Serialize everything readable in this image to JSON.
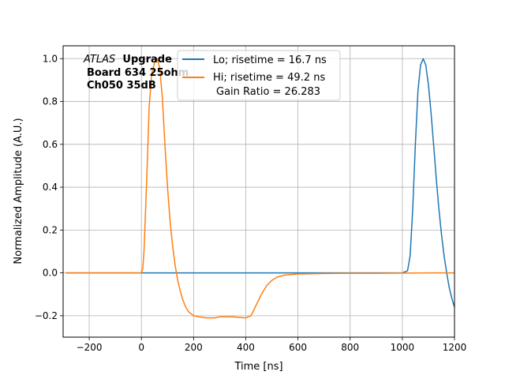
{
  "chart_data": {
    "type": "line",
    "xlabel": "Time [ns]",
    "ylabel": "Normalized Amplitude (A.U.)",
    "xlim": [
      -300,
      1200
    ],
    "ylim": [
      -0.3,
      1.06
    ],
    "xticks": [
      -200,
      0,
      200,
      400,
      600,
      800,
      1000,
      1200
    ],
    "yticks": [
      -0.2,
      0.0,
      0.2,
      0.4,
      0.6,
      0.8,
      1.0
    ],
    "xtick_labels": [
      "−200",
      "0",
      "200",
      "400",
      "600",
      "800",
      "1000",
      "1200"
    ],
    "ytick_labels": [
      "−0.2",
      "0.0",
      "0.2",
      "0.4",
      "0.6",
      "0.8",
      "1.0"
    ],
    "grid": true,
    "legend_position": "top-center",
    "annotation": {
      "atlas": "ATLAS",
      "upgrade": "Upgrade",
      "line2": "Board 634 25ohm",
      "line3": "Ch050 35dB"
    },
    "series": [
      {
        "name": "Lo; risetime = 16.7 ns",
        "color": "#1f77b4",
        "x": [
          -290,
          -200,
          -100,
          0,
          100,
          200,
          300,
          400,
          500,
          600,
          700,
          800,
          900,
          1000,
          1020,
          1030,
          1040,
          1050,
          1060,
          1070,
          1080,
          1090,
          1100,
          1110,
          1120,
          1130,
          1140,
          1150,
          1160,
          1170,
          1180,
          1190,
          1200
        ],
        "y": [
          0.0,
          0.0,
          0.0,
          0.0,
          0.0,
          0.0,
          0.0,
          0.0,
          0.0,
          0.0,
          0.0,
          0.0,
          0.0,
          0.0,
          0.01,
          0.08,
          0.3,
          0.6,
          0.85,
          0.97,
          1.0,
          0.97,
          0.88,
          0.75,
          0.6,
          0.44,
          0.3,
          0.18,
          0.08,
          0.0,
          -0.07,
          -0.12,
          -0.16
        ]
      },
      {
        "name": "Hi; risetime = 49.2 ns",
        "color": "#ff7f0e",
        "x": [
          -290,
          -100,
          0,
          5,
          10,
          20,
          30,
          40,
          50,
          60,
          70,
          80,
          90,
          100,
          110,
          120,
          130,
          140,
          150,
          160,
          170,
          180,
          200,
          220,
          250,
          280,
          300,
          350,
          400,
          420,
          440,
          460,
          480,
          500,
          520,
          550,
          600,
          700,
          800,
          900,
          1000,
          1100,
          1200
        ],
        "y": [
          0.0,
          0.0,
          0.0,
          0.02,
          0.1,
          0.42,
          0.78,
          0.93,
          0.98,
          1.0,
          0.96,
          0.82,
          0.6,
          0.4,
          0.24,
          0.12,
          0.03,
          -0.04,
          -0.09,
          -0.13,
          -0.16,
          -0.18,
          -0.2,
          -0.205,
          -0.21,
          -0.21,
          -0.205,
          -0.205,
          -0.21,
          -0.2,
          -0.15,
          -0.1,
          -0.06,
          -0.035,
          -0.02,
          -0.01,
          -0.005,
          -0.003,
          -0.002,
          -0.002,
          -0.001,
          0.0,
          0.0
        ]
      }
    ],
    "extra_text": "Gain Ratio = 26.283"
  }
}
